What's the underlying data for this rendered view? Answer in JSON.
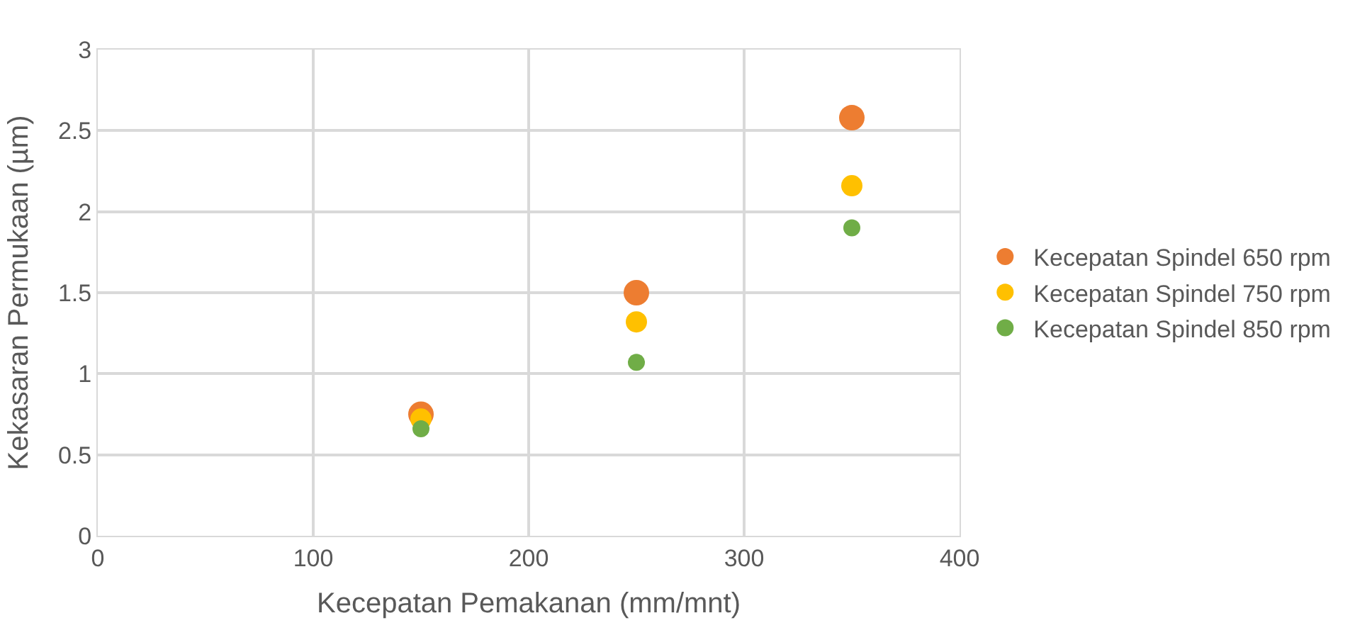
{
  "chart_data": {
    "type": "scatter",
    "xlabel": "Kecepatan Pemakanan (mm/mnt)",
    "ylabel": "Kekasaran Permukaan (µm)",
    "x": [
      150,
      250,
      350
    ],
    "series": [
      {
        "name": "Kecepatan Spindel 650 rpm",
        "color": "#ed7d31",
        "values": [
          0.75,
          1.5,
          2.58
        ]
      },
      {
        "name": "Kecepatan Spindel 750 rpm",
        "color": "#ffc000",
        "values": [
          0.72,
          1.32,
          2.16
        ]
      },
      {
        "name": "Kecepatan Spindel 850 rpm",
        "color": "#70ad47",
        "values": [
          0.66,
          1.07,
          1.9
        ]
      }
    ],
    "xlim": [
      0,
      400
    ],
    "xticks": [
      0,
      100,
      200,
      300,
      400
    ],
    "ylim": [
      0,
      3
    ],
    "yticks": [
      0,
      0.5,
      1,
      1.5,
      2,
      2.5,
      3
    ],
    "grid": true,
    "legend": "right",
    "marker": "circle"
  }
}
